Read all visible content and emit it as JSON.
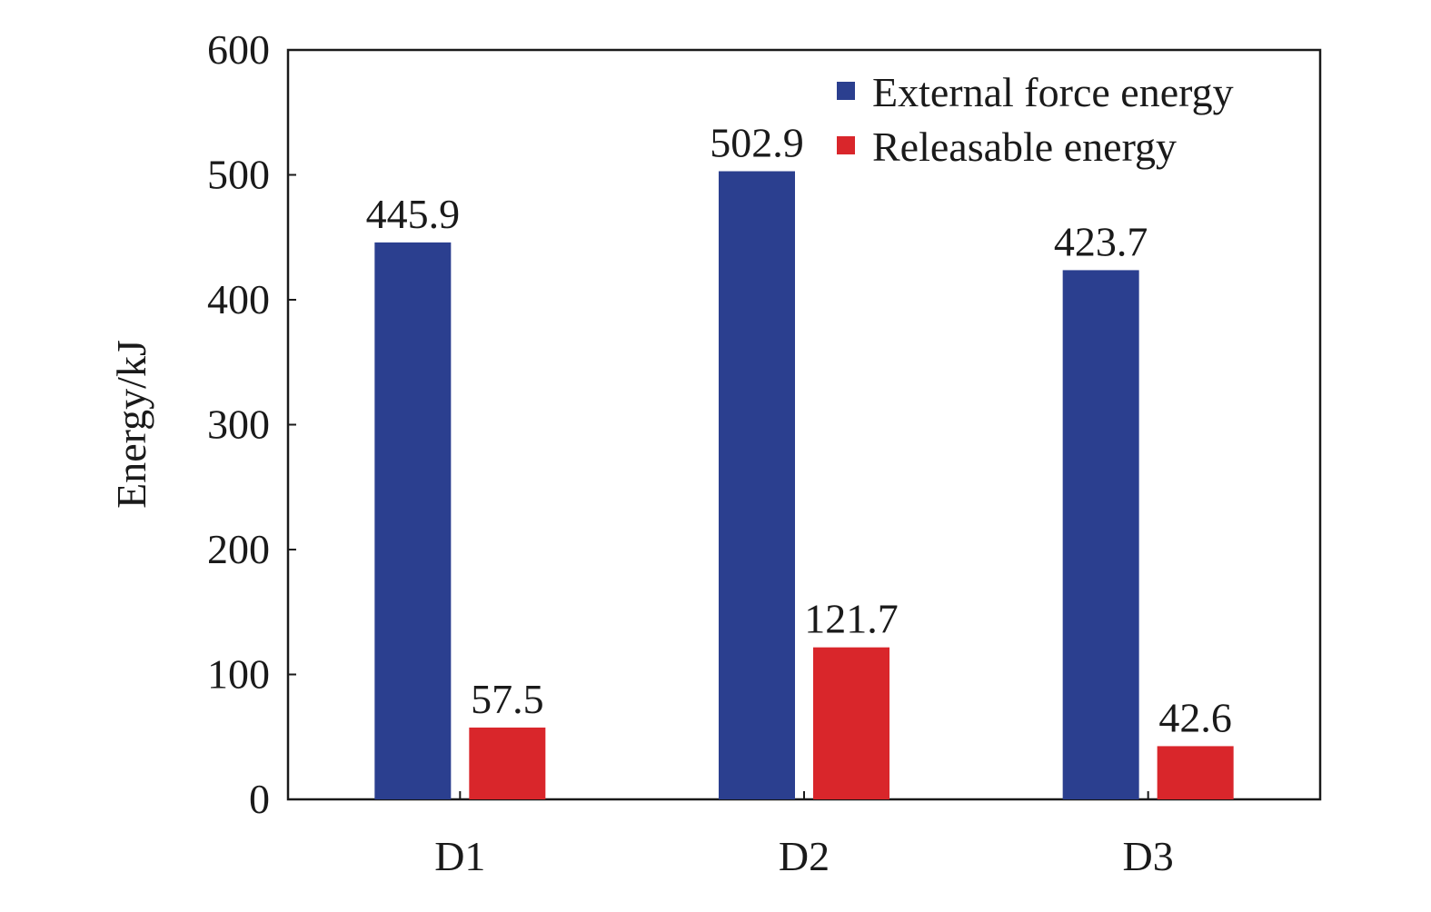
{
  "chart_data": {
    "type": "bar",
    "title": "",
    "xlabel": "",
    "ylabel": "Energy/kJ",
    "categories": [
      "D1",
      "D2",
      "D3"
    ],
    "ylim": [
      0,
      600
    ],
    "yticks": [
      0,
      100,
      200,
      300,
      400,
      500,
      600
    ],
    "grid": false,
    "legend_position": "top-right",
    "series": [
      {
        "name": "External force energy",
        "color": "#2b3f8f",
        "values": [
          445.9,
          502.9,
          423.7
        ],
        "labels": [
          "445.9",
          "502.9",
          "423.7"
        ]
      },
      {
        "name": "Releasable energy",
        "color": "#d9262b",
        "values": [
          57.5,
          121.7,
          42.6
        ],
        "labels": [
          "57.5",
          "121.7",
          "42.6"
        ]
      }
    ]
  }
}
